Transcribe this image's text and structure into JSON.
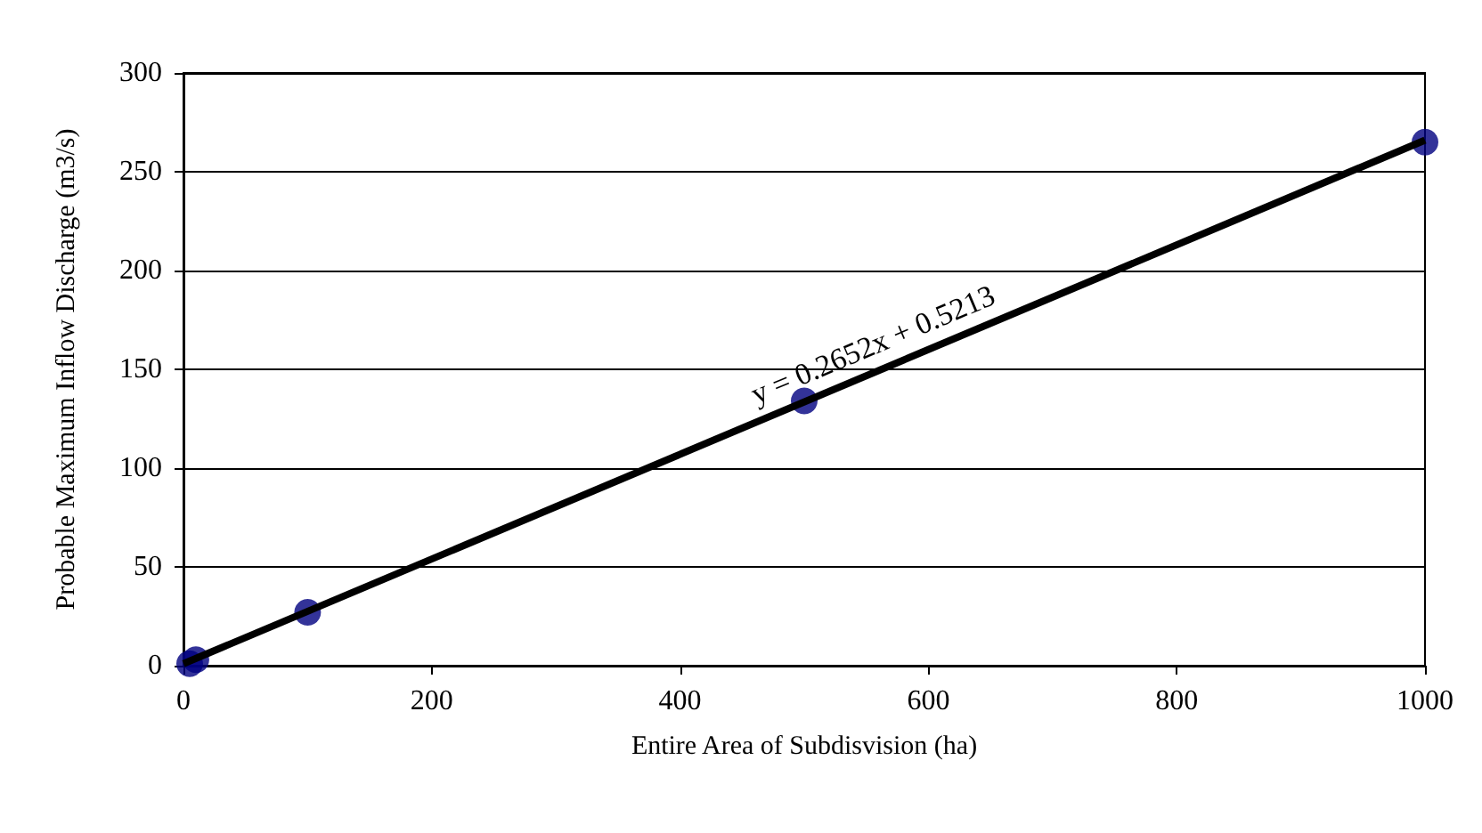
{
  "chart_data": {
    "type": "scatter",
    "xlabel": "Entire Area of Subdisvision (ha)",
    "ylabel": "Probable Maximum Inflow Discharge (m3/s)",
    "xlim": [
      0,
      1000
    ],
    "xticks": [
      0,
      200,
      400,
      600,
      800,
      1000
    ],
    "ylim": [
      0,
      300
    ],
    "yticks": [
      0,
      50,
      100,
      150,
      200,
      250,
      300
    ],
    "grid": "y",
    "series": [
      {
        "color": "#000080",
        "marker": "circle",
        "x": [
          5,
          10,
          100,
          500,
          1000
        ],
        "values": [
          1,
          3,
          27,
          134,
          265
        ]
      },
      {
        "type": "line",
        "color": "#000000",
        "marker": "none",
        "x": [
          0,
          1000
        ],
        "values": [
          1,
          266
        ]
      }
    ],
    "annotations": [
      {
        "text": "y = 0.2652x + 0.5213",
        "x": 560,
        "y": 150
      }
    ]
  }
}
